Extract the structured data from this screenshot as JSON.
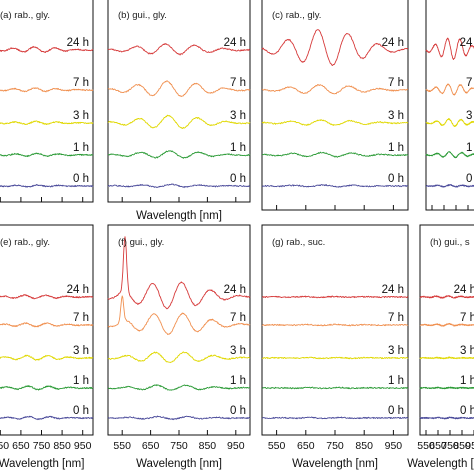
{
  "chart_data": {
    "type": "line",
    "xlabel": "Wavelength [nm]",
    "curve_labels": [
      "0 h",
      "1 h",
      "3 h",
      "7 h",
      "24 h"
    ],
    "series_colors": {
      "0 h": "#4a4a9a",
      "1 h": "#2a9a35",
      "3 h": "#e0d800",
      "7 h": "#f09050",
      "24 h": "#d63a3a"
    },
    "xticks": [
      550,
      650,
      750,
      850,
      950
    ],
    "xlim": [
      500,
      1000
    ],
    "panels": [
      {
        "label": "(a) rab., gly.",
        "tick_labels_shown": false,
        "xlabel_shown": false,
        "amplitude": {
          "0 h": 0.1,
          "1 h": 0.15,
          "3 h": 0.15,
          "7 h": 0.2,
          "24 h": 0.3
        }
      },
      {
        "label": "(b) gui., gly.",
        "tick_labels_shown": false,
        "xlabel_shown": true,
        "amplitude": {
          "0 h": 0.15,
          "1 h": 0.4,
          "3 h": 0.7,
          "7 h": 0.85,
          "24 h": 0.6
        }
      },
      {
        "label": "(c) rab., gly.",
        "tick_labels_shown": false,
        "xlabel_shown": false,
        "amplitude": {
          "0 h": 0.1,
          "1 h": 0.25,
          "3 h": 0.3,
          "7 h": 0.5,
          "24 h": 2.0
        }
      },
      {
        "label": "",
        "tick_labels_shown": false,
        "xlabel_shown": false,
        "amplitude": {
          "0 h": 0.1,
          "1 h": 0.3,
          "3 h": 0.4,
          "7 h": 0.6,
          "24 h": 1.2
        }
      },
      {
        "label": "(e) rab., gly.",
        "tick_labels_shown": true,
        "xlabel_shown": true,
        "amplitude": {
          "0 h": 0.15,
          "1 h": 0.2,
          "3 h": 0.25,
          "7 h": 0.2,
          "24 h": 0.2
        }
      },
      {
        "label": "(f) gui., gly.",
        "tick_labels_shown": true,
        "xlabel_shown": true,
        "amplitude": {
          "0 h": 0.15,
          "1 h": 0.3,
          "3 h": 0.6,
          "7 h": 1.2,
          "24 h": 1.5
        }
      },
      {
        "label": "(g) rab., suc.",
        "tick_labels_shown": true,
        "xlabel_shown": true,
        "amplitude": {
          "0 h": 0.05,
          "1 h": 0.05,
          "3 h": 0.05,
          "7 h": 0.05,
          "24 h": 0.05
        }
      },
      {
        "label": "(h) gui., s",
        "tick_labels_shown": true,
        "xlabel_shown": true,
        "amplitude": {
          "0 h": 0.05,
          "1 h": 0.05,
          "3 h": 0.05,
          "7 h": 0.1,
          "24 h": 0.1
        }
      }
    ]
  }
}
